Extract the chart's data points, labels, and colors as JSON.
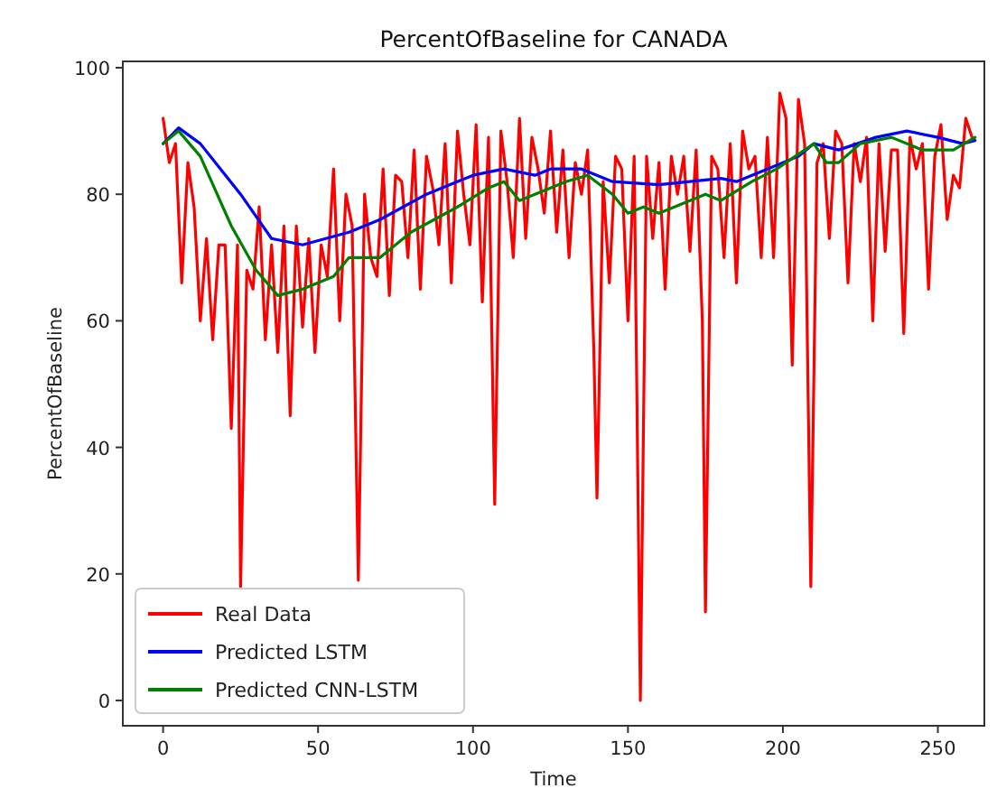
{
  "chart_data": {
    "type": "line",
    "title": "PercentOfBaseline for CANADA",
    "xlabel": "Time",
    "ylabel": "PercentOfBaseline",
    "xlim": [
      -13,
      265
    ],
    "ylim": [
      -4,
      101
    ],
    "xticks": [
      0,
      50,
      100,
      150,
      200,
      250
    ],
    "yticks": [
      0,
      20,
      40,
      60,
      80,
      100
    ],
    "legend": "bottom left",
    "grid": false,
    "series": [
      {
        "name": "Real Data",
        "color": "#ff0000",
        "x": [
          0,
          2,
          4,
          6,
          8,
          10,
          12,
          14,
          16,
          18,
          20,
          22,
          24,
          25,
          27,
          29,
          31,
          33,
          35,
          37,
          39,
          41,
          43,
          45,
          47,
          49,
          51,
          53,
          55,
          57,
          59,
          61,
          63,
          65,
          67,
          69,
          71,
          73,
          75,
          77,
          79,
          81,
          83,
          85,
          87,
          89,
          91,
          93,
          95,
          97,
          99,
          101,
          103,
          105,
          107,
          109,
          111,
          113,
          115,
          117,
          119,
          121,
          123,
          125,
          127,
          129,
          131,
          133,
          135,
          137,
          139,
          140,
          142,
          144,
          146,
          148,
          150,
          152,
          154,
          156,
          158,
          160,
          162,
          164,
          166,
          168,
          170,
          172,
          174,
          175,
          177,
          179,
          181,
          183,
          185,
          187,
          189,
          191,
          193,
          195,
          197,
          199,
          201,
          203,
          205,
          207,
          209,
          211,
          213,
          215,
          217,
          219,
          221,
          223,
          225,
          227,
          229,
          231,
          233,
          235,
          237,
          239,
          241,
          243,
          245,
          247,
          249,
          251,
          253,
          255,
          257,
          259,
          261
        ],
        "values": [
          92,
          85,
          88,
          66,
          85,
          78,
          60,
          73,
          57,
          72,
          72,
          43,
          72,
          18,
          68,
          65,
          78,
          57,
          72,
          55,
          75,
          45,
          75,
          59,
          73,
          55,
          72,
          67,
          84,
          60,
          80,
          75,
          19,
          80,
          70,
          67,
          84,
          64,
          83,
          82,
          70,
          87,
          65,
          86,
          81,
          72,
          88,
          66,
          90,
          80,
          72,
          91,
          63,
          89,
          31,
          90,
          82,
          70,
          92,
          73,
          89,
          84,
          77,
          90,
          74,
          87,
          70,
          85,
          80,
          87,
          55,
          32,
          82,
          66,
          86,
          84,
          60,
          86,
          0,
          86,
          73,
          85,
          65,
          86,
          80,
          86,
          71,
          87,
          60,
          14,
          86,
          84,
          70,
          88,
          66,
          90,
          84,
          86,
          70,
          89,
          70,
          96,
          92,
          53,
          95,
          88,
          18,
          85,
          88,
          73,
          90,
          88,
          66,
          88,
          82,
          89,
          60,
          88,
          71,
          87,
          87,
          58,
          89,
          84,
          88,
          65,
          86,
          91,
          76,
          83,
          81,
          92,
          89
        ]
      },
      {
        "name": "Predicted LSTM",
        "color": "#0000ff",
        "x": [
          0,
          5,
          12,
          25,
          35,
          45,
          60,
          70,
          85,
          100,
          110,
          120,
          125,
          135,
          145,
          160,
          170,
          180,
          185,
          195,
          205,
          210,
          218,
          230,
          240,
          250,
          258,
          262
        ],
        "values": [
          88,
          90.5,
          88,
          80,
          73,
          72,
          74,
          76,
          80,
          83,
          84,
          83,
          84,
          84,
          82,
          81.5,
          82,
          82.5,
          82,
          84,
          86,
          88,
          87,
          89,
          90,
          89,
          88,
          88.5
        ]
      },
      {
        "name": "Predicted CNN-LSTM",
        "color": "#008000",
        "x": [
          0,
          5,
          12,
          22,
          30,
          37,
          45,
          55,
          60,
          70,
          80,
          95,
          105,
          110,
          115,
          120,
          130,
          137,
          145,
          150,
          155,
          160,
          170,
          175,
          180,
          190,
          198,
          210,
          214,
          218,
          225,
          235,
          245,
          255,
          262
        ],
        "values": [
          88,
          90,
          86,
          75,
          68,
          64,
          65,
          67,
          70,
          70,
          74,
          78,
          81,
          82,
          79,
          80,
          82,
          83,
          80,
          77,
          78,
          77,
          79,
          80,
          79,
          82,
          84,
          88,
          85,
          85,
          88,
          89,
          87,
          87,
          89
        ]
      }
    ]
  }
}
